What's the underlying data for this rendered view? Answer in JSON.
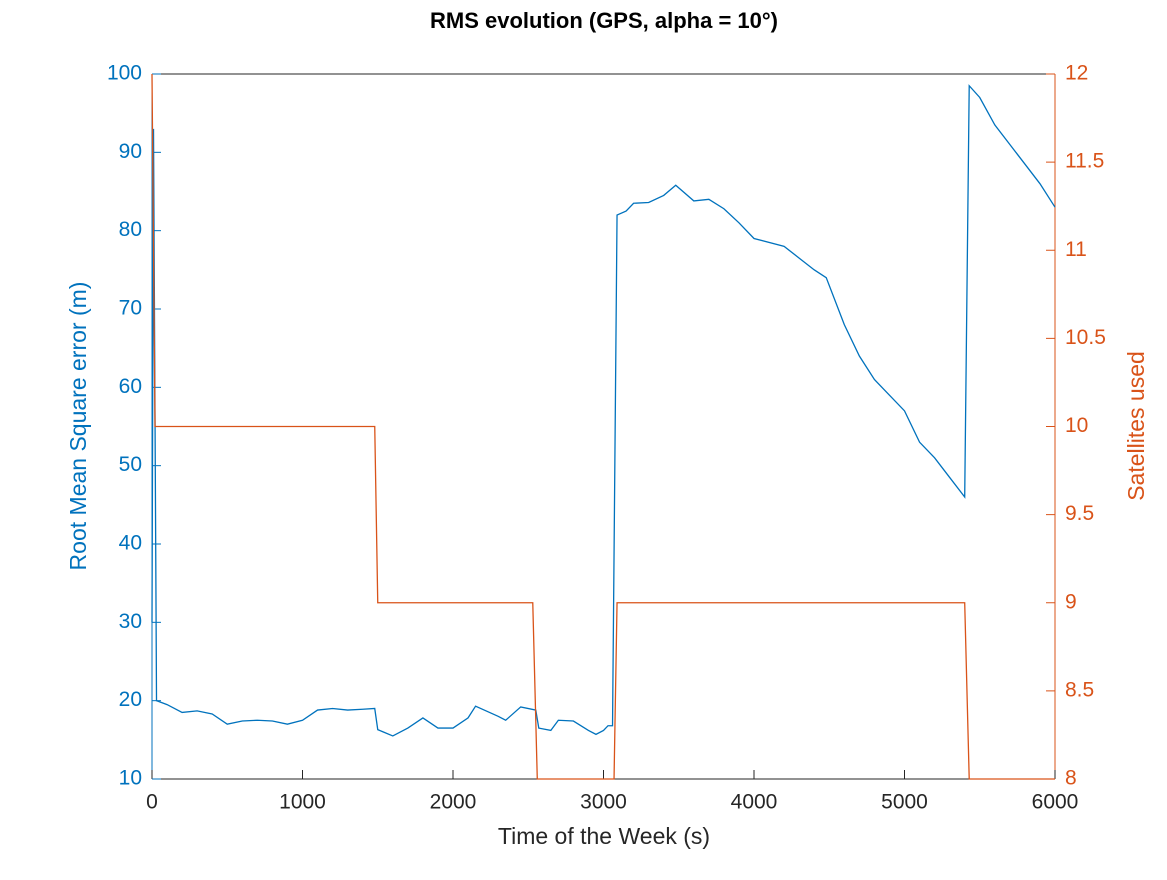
{
  "chart_data": {
    "type": "line",
    "title": "RMS evolution (GPS, alpha = 10°)",
    "xlabel": "Time of the Week (s)",
    "ylabel": "Root Mean Square error (m)",
    "y2label": "Satellites used",
    "xlim": [
      0,
      6000
    ],
    "xticks": [
      0,
      1000,
      2000,
      3000,
      4000,
      5000,
      6000
    ],
    "ylim": [
      10,
      100
    ],
    "yticks": [
      10,
      20,
      30,
      40,
      50,
      60,
      70,
      80,
      90,
      100
    ],
    "y2lim": [
      8,
      12
    ],
    "y2ticks": [
      8,
      8.5,
      9,
      9.5,
      10,
      10.5,
      11,
      11.5,
      12
    ],
    "series": [
      {
        "name": "RMS",
        "color": "#0072BD",
        "axis": "y",
        "x": [
          0,
          10,
          30,
          100,
          200,
          300,
          400,
          500,
          600,
          700,
          800,
          900,
          1000,
          1100,
          1200,
          1300,
          1400,
          1480,
          1500,
          1600,
          1700,
          1800,
          1900,
          2000,
          2100,
          2150,
          2300,
          2350,
          2450,
          2550,
          2570,
          2650,
          2700,
          2800,
          2900,
          2950,
          3000,
          3030,
          3060,
          3090,
          3150,
          3200,
          3300,
          3400,
          3480,
          3600,
          3700,
          3800,
          3900,
          4000,
          4200,
          4300,
          4400,
          4480,
          4600,
          4700,
          4800,
          4900,
          5000,
          5100,
          5200,
          5300,
          5400,
          5430,
          5500,
          5600,
          5700,
          5800,
          5900,
          6000
        ],
        "values": [
          30,
          93,
          20,
          19.5,
          18.5,
          18.7,
          18.3,
          17,
          17.4,
          17.5,
          17.4,
          17,
          17.5,
          18.8,
          19,
          18.8,
          18.9,
          19,
          16.3,
          15.5,
          16.5,
          17.8,
          16.5,
          16.5,
          17.8,
          19.3,
          18,
          17.5,
          19.2,
          18.8,
          16.5,
          16.2,
          17.5,
          17.4,
          16.2,
          15.7,
          16.2,
          16.8,
          16.8,
          82,
          82.5,
          83.5,
          83.6,
          84.5,
          85.8,
          83.8,
          84,
          82.8,
          81,
          79,
          78,
          76.5,
          75,
          74,
          68,
          64,
          61,
          59,
          57,
          53,
          51,
          48.5,
          46,
          98.5,
          97,
          93.5,
          91,
          88.5,
          86,
          83
        ]
      },
      {
        "name": "Satellites",
        "color": "#D95319",
        "axis": "y2",
        "x": [
          0,
          20,
          1480,
          1500,
          2530,
          2560,
          3070,
          3090,
          5400,
          5430,
          6000
        ],
        "values": [
          12,
          10,
          10,
          9,
          9,
          8,
          8,
          9,
          9,
          8,
          8
        ]
      }
    ]
  }
}
